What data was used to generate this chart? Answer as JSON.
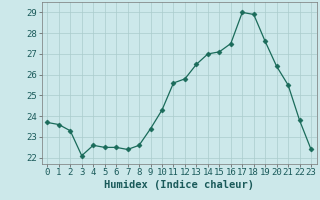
{
  "x": [
    0,
    1,
    2,
    3,
    4,
    5,
    6,
    7,
    8,
    9,
    10,
    11,
    12,
    13,
    14,
    15,
    16,
    17,
    18,
    19,
    20,
    21,
    22,
    23
  ],
  "y": [
    23.7,
    23.6,
    23.3,
    22.1,
    22.6,
    22.5,
    22.5,
    22.4,
    22.6,
    23.4,
    24.3,
    25.6,
    25.8,
    26.5,
    27.0,
    27.1,
    27.5,
    29.0,
    28.9,
    27.6,
    26.4,
    25.5,
    23.8,
    22.4
  ],
  "line_color": "#1a6b5a",
  "marker": "D",
  "marker_size": 2.5,
  "bg_color": "#cce8ea",
  "grid_color": "#aacccc",
  "xlabel": "Humidex (Indice chaleur)",
  "ylim": [
    21.7,
    29.5
  ],
  "xlim": [
    -0.5,
    23.5
  ],
  "yticks": [
    22,
    23,
    24,
    25,
    26,
    27,
    28,
    29
  ],
  "xticks": [
    0,
    1,
    2,
    3,
    4,
    5,
    6,
    7,
    8,
    9,
    10,
    11,
    12,
    13,
    14,
    15,
    16,
    17,
    18,
    19,
    20,
    21,
    22,
    23
  ],
  "xlabel_fontsize": 7.5,
  "tick_fontsize": 6.5
}
